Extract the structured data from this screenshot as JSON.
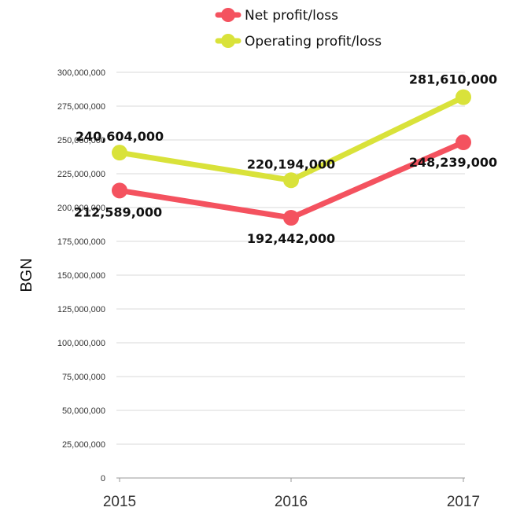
{
  "chart_data": {
    "type": "line",
    "title": "",
    "xlabel": "",
    "ylabel": "BGN",
    "categories": [
      "2015",
      "2016",
      "2017"
    ],
    "ylim": [
      0,
      300000000
    ],
    "y_ticks": [
      0,
      25000000,
      50000000,
      75000000,
      100000000,
      125000000,
      150000000,
      175000000,
      200000000,
      225000000,
      250000000,
      275000000,
      300000000
    ],
    "y_tick_labels": [
      "0",
      "25,000,000",
      "50,000,000",
      "75,000,000",
      "100,000,000",
      "125,000,000",
      "150,000,000",
      "175,000,000",
      "200,000,000",
      "225,000,000",
      "250,000,000",
      "275,000,000",
      "300,000,000"
    ],
    "grid": true,
    "legend_position": "top-center",
    "series": [
      {
        "name": "Net profit/loss",
        "color": "#f4525f",
        "values": [
          212589000,
          192442000,
          248239000
        ],
        "labels": [
          "212,589,000",
          "192,442,000",
          "248,239,000"
        ]
      },
      {
        "name": "Operating profit/loss",
        "color": "#d9e23a",
        "values": [
          240604000,
          220194000,
          281610000
        ],
        "labels": [
          "240,604,000",
          "220,194,000",
          "281,610,000"
        ]
      }
    ]
  }
}
